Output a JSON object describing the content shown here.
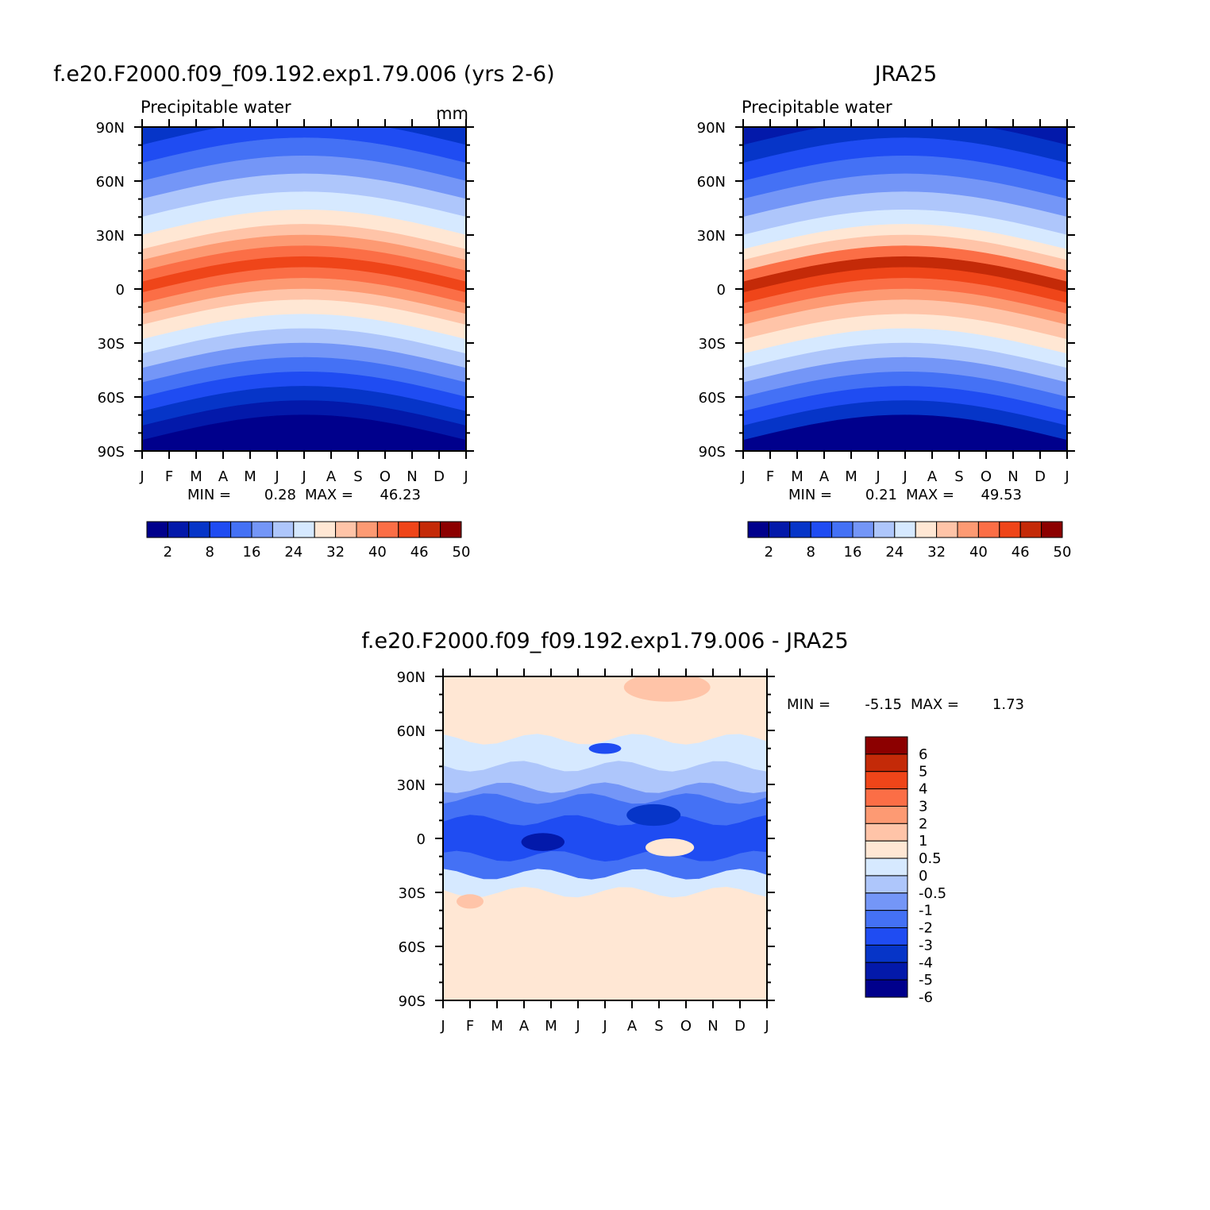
{
  "chart_data": [
    {
      "type": "heatmap",
      "title": "f.e20.F2000.f09_f09.192.exp1.79.006 (yrs 2-6)",
      "subtitle": "Precipitable water",
      "units": "mm",
      "x_tick_labels": [
        "J",
        "F",
        "M",
        "A",
        "M",
        "J",
        "J",
        "A",
        "S",
        "O",
        "N",
        "D",
        "J"
      ],
      "y_tick_labels": [
        "90N",
        "60N",
        "30N",
        "0",
        "30S",
        "60S",
        "90S"
      ],
      "y_values": [
        90,
        60,
        30,
        0,
        -30,
        -60,
        -90
      ],
      "min_label": "MIN =",
      "min_value": "0.28",
      "max_label": "MAX =",
      "max_value": "46.23",
      "colorbar": {
        "orientation": "horizontal",
        "labels": [
          "2",
          "8",
          "16",
          "24",
          "32",
          "40",
          "46",
          "50"
        ],
        "colors": [
          "#00008c",
          "#0319aa",
          "#0635c8",
          "#1f4cf2",
          "#4471f5",
          "#7496f7",
          "#aec6fb",
          "#d6e9ff",
          "#ffe7d4",
          "#ffc4a8",
          "#fd9a73",
          "#fb6e46",
          "#ef4519",
          "#c42a08",
          "#8c0000"
        ]
      },
      "bands_lat": [
        90,
        80,
        70,
        60,
        50,
        40,
        30,
        22,
        16,
        10,
        4,
        -2,
        -8,
        -14,
        -20,
        -28,
        -36,
        -44,
        -52,
        -60,
        -68,
        -76,
        -84,
        -90
      ],
      "levels": [
        2,
        3,
        4,
        5,
        6,
        7,
        8,
        9,
        10,
        11,
        12,
        11,
        10,
        9,
        8,
        7,
        6,
        5,
        4,
        3,
        2,
        1,
        0
      ],
      "grid": false
    },
    {
      "type": "heatmap",
      "title": "JRA25",
      "subtitle": "Precipitable water",
      "x_tick_labels": [
        "J",
        "F",
        "M",
        "A",
        "M",
        "J",
        "J",
        "A",
        "S",
        "O",
        "N",
        "D",
        "J"
      ],
      "y_tick_labels": [
        "90N",
        "60N",
        "30N",
        "0",
        "30S",
        "60S",
        "90S"
      ],
      "y_values": [
        90,
        60,
        30,
        0,
        -30,
        -60,
        -90
      ],
      "min_label": "MIN =",
      "min_value": "0.21",
      "max_label": "MAX =",
      "max_value": "49.53",
      "colorbar": {
        "orientation": "horizontal",
        "labels": [
          "2",
          "8",
          "16",
          "24",
          "32",
          "40",
          "46",
          "50"
        ],
        "colors": [
          "#00008c",
          "#0319aa",
          "#0635c8",
          "#1f4cf2",
          "#4471f5",
          "#7496f7",
          "#aec6fb",
          "#d6e9ff",
          "#ffe7d4",
          "#ffc4a8",
          "#fd9a73",
          "#fb6e46",
          "#ef4519",
          "#c42a08",
          "#8c0000"
        ]
      },
      "bands_lat": [
        90,
        80,
        70,
        60,
        50,
        40,
        30,
        22,
        16,
        10,
        4,
        -2,
        -8,
        -14,
        -20,
        -28,
        -36,
        -44,
        -52,
        -60,
        -68,
        -76,
        -84,
        -90
      ],
      "levels": [
        1,
        2,
        3,
        4,
        5,
        6,
        7,
        8,
        9,
        11,
        13,
        12,
        11,
        10,
        9,
        8,
        7,
        6,
        5,
        4,
        3,
        2,
        0
      ],
      "grid": false
    },
    {
      "type": "heatmap",
      "title": "f.e20.F2000.f09_f09.192.exp1.79.006 - JRA25",
      "x_tick_labels": [
        "J",
        "F",
        "M",
        "A",
        "M",
        "J",
        "J",
        "A",
        "S",
        "O",
        "N",
        "D",
        "J"
      ],
      "y_tick_labels": [
        "90N",
        "60N",
        "30N",
        "0",
        "30S",
        "60S",
        "90S"
      ],
      "y_values": [
        90,
        60,
        30,
        0,
        -30,
        -60,
        -90
      ],
      "min_label": "MIN =",
      "min_value": "-5.15",
      "max_label": "MAX =",
      "max_value": "1.73",
      "colorbar": {
        "orientation": "vertical",
        "labels": [
          "6",
          "5",
          "4",
          "3",
          "2",
          "1",
          "0.5",
          "0",
          "-0.5",
          "-1",
          "-2",
          "-3",
          "-4",
          "-5",
          "-6"
        ],
        "colors": [
          "#8c0000",
          "#c42a08",
          "#ef4519",
          "#fb6e46",
          "#fd9a73",
          "#ffc4a8",
          "#ffe7d4",
          "#d6e9ff",
          "#aec6fb",
          "#7496f7",
          "#4471f5",
          "#1f4cf2",
          "#0635c8",
          "#0319aa",
          "#00008c"
        ]
      },
      "bands_lat": [
        90,
        70,
        55,
        40,
        28,
        22,
        10,
        -10,
        -20,
        -30,
        -45,
        -60,
        -75,
        -90
      ],
      "band_values": [
        0.3,
        0.2,
        -0.3,
        -0.6,
        -1.5,
        -2.5,
        -3.5,
        -2.0,
        -0.3,
        0.3,
        0.2,
        0.2,
        0.2
      ],
      "features": [
        {
          "month": 8.3,
          "lat": 84,
          "rx": 1.6,
          "ry": 8,
          "value": 1.0
        },
        {
          "month": 3.7,
          "lat": -2,
          "rx": 0.8,
          "ry": 5,
          "value": -5.0
        },
        {
          "month": 7.8,
          "lat": 13,
          "rx": 1.0,
          "ry": 6,
          "value": -4.5
        },
        {
          "month": 8.4,
          "lat": -5,
          "rx": 0.9,
          "ry": 5,
          "value": 0.5
        },
        {
          "month": 6.0,
          "lat": 50,
          "rx": 0.6,
          "ry": 3,
          "value": -3.0
        },
        {
          "month": 1.0,
          "lat": -35,
          "rx": 0.5,
          "ry": 4,
          "value": 1.0
        }
      ],
      "grid": false
    }
  ]
}
